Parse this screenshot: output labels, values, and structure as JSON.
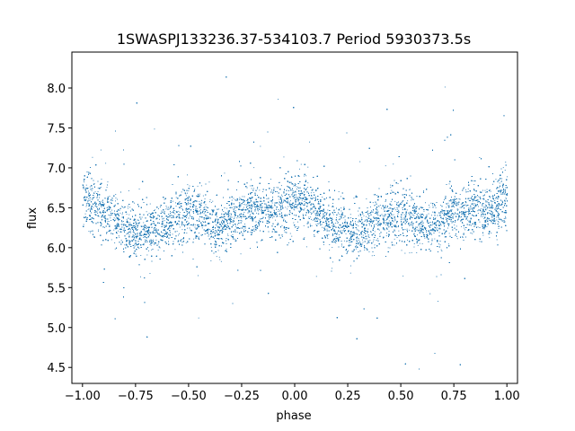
{
  "chart_data": {
    "type": "scatter",
    "title": "1SWASPJ133236.37-534103.7 Period 5930373.5s",
    "xlabel": "phase",
    "ylabel": "flux",
    "xlim": [
      -1.05,
      1.05
    ],
    "ylim": [
      4.3,
      8.45
    ],
    "xticks": [
      -1.0,
      -0.75,
      -0.5,
      -0.25,
      0.0,
      0.25,
      0.5,
      0.75,
      1.0
    ],
    "xtick_labels": [
      "−1.00",
      "−0.75",
      "−0.50",
      "−0.25",
      "0.00",
      "0.25",
      "0.50",
      "0.75",
      "1.00"
    ],
    "yticks": [
      4.5,
      5.0,
      5.5,
      6.0,
      6.5,
      7.0,
      7.5,
      8.0
    ],
    "ytick_labels": [
      "4.5",
      "5.0",
      "5.5",
      "6.0",
      "6.5",
      "7.0",
      "7.5",
      "8.0"
    ],
    "grid": false,
    "marker_color": "#1f77b4",
    "series": [
      {
        "profile": {
          "phase": [
            -1.0,
            -0.95,
            -0.9,
            -0.85,
            -0.8,
            -0.75,
            -0.7,
            -0.65,
            -0.6,
            -0.55,
            -0.5,
            -0.45,
            -0.4,
            -0.35,
            -0.3,
            -0.25,
            -0.2,
            -0.15,
            -0.1,
            -0.05,
            0.0,
            0.05,
            0.1,
            0.15,
            0.2,
            0.25,
            0.3,
            0.35,
            0.4,
            0.45,
            0.5,
            0.55,
            0.6,
            0.65,
            0.7,
            0.75,
            0.8,
            0.85,
            0.9,
            0.95,
            1.0
          ],
          "median_flux": [
            6.65,
            6.55,
            6.45,
            6.35,
            6.25,
            6.2,
            6.2,
            6.25,
            6.35,
            6.4,
            6.45,
            6.4,
            6.3,
            6.25,
            6.35,
            6.45,
            6.5,
            6.45,
            6.45,
            6.5,
            6.65,
            6.55,
            6.45,
            6.35,
            6.25,
            6.2,
            6.2,
            6.25,
            6.35,
            6.4,
            6.45,
            6.4,
            6.3,
            6.25,
            6.35,
            6.45,
            6.5,
            6.45,
            6.45,
            6.5,
            6.65
          ],
          "spread": [
            0.35,
            0.32,
            0.3,
            0.3,
            0.3,
            0.28,
            0.28,
            0.3,
            0.3,
            0.3,
            0.32,
            0.32,
            0.3,
            0.3,
            0.3,
            0.3,
            0.28,
            0.28,
            0.3,
            0.32,
            0.35,
            0.32,
            0.3,
            0.3,
            0.3,
            0.28,
            0.28,
            0.3,
            0.3,
            0.3,
            0.32,
            0.32,
            0.3,
            0.3,
            0.3,
            0.3,
            0.28,
            0.28,
            0.3,
            0.32,
            0.35
          ]
        },
        "point_count": 26000
      }
    ]
  }
}
